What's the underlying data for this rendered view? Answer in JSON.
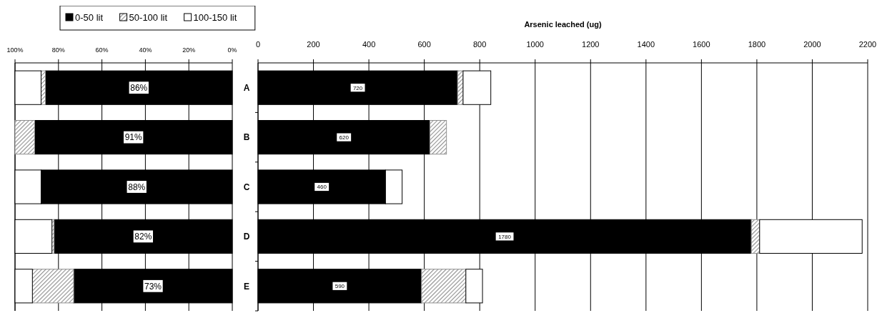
{
  "chart_data": [
    {
      "type": "bar",
      "orientation": "horizontal",
      "stacked": true,
      "categories": [
        null,
        null,
        null,
        null,
        null
      ],
      "xlim": [
        100,
        0
      ],
      "xticks": [
        {
          "value": 100,
          "label": "100%"
        },
        {
          "value": 80,
          "label": "80%"
        },
        {
          "value": 60,
          "label": "60%"
        },
        {
          "value": 40,
          "label": "40%"
        },
        {
          "value": 20,
          "label": "20%"
        },
        {
          "value": 0,
          "label": "0%"
        }
      ],
      "grid": "x",
      "legend": "top",
      "series": [
        {
          "name": "0-50 lit",
          "color": "#000000",
          "values": [
            86,
            91,
            88,
            82,
            73
          ],
          "value_labels": [
            "86%",
            "91%",
            "88%",
            "82%",
            "73%"
          ]
        },
        {
          "name": "50-100 lit",
          "color": "#909090",
          "values": [
            2,
            9,
            0,
            1,
            19
          ]
        },
        {
          "name": "100-150 lit",
          "color": "#ffffff",
          "values": [
            12,
            0,
            12,
            17,
            8
          ]
        }
      ]
    },
    {
      "type": "bar",
      "orientation": "horizontal",
      "stacked": true,
      "categories": [
        "A",
        "B",
        "C",
        "D",
        "E"
      ],
      "xlabel": "Arsenic leached (ug)",
      "xlim": [
        0,
        2200
      ],
      "xticks": [
        0,
        200,
        400,
        600,
        800,
        1000,
        1200,
        1400,
        1600,
        1800,
        2000,
        2200
      ],
      "grid": "x",
      "series": [
        {
          "color": "#000000",
          "values": [
            720,
            620,
            460,
            1780,
            590
          ],
          "value_labels": [
            "720",
            "620",
            "460",
            "1780",
            "590"
          ]
        },
        {
          "color": "#909090",
          "values": [
            20,
            60,
            0,
            30,
            160
          ]
        },
        {
          "color": "#ffffff",
          "values": [
            100,
            0,
            60,
            370,
            60
          ]
        }
      ]
    }
  ]
}
